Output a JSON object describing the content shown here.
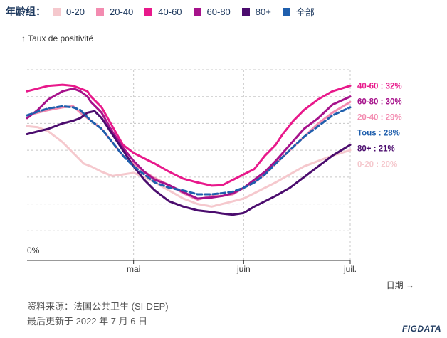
{
  "chart_data": {
    "type": "line",
    "legend_title": "年龄组：",
    "ylabel": "↑ Taux de positivité",
    "xlabel": "日期 →",
    "y_tick_label": "0%",
    "ylim": [
      0,
      35
    ],
    "x_ticks": [
      {
        "label": "mai",
        "day": 30
      },
      {
        "label": "juin",
        "day": 61
      },
      {
        "label": "juil.",
        "day": 91
      }
    ],
    "x_range": [
      0,
      91
    ],
    "series": [
      {
        "name": "0-20",
        "color": "#f5c8cd",
        "end_label": "0-20 : 20%",
        "dashed": false,
        "points": [
          [
            0,
            24.5
          ],
          [
            3,
            24.3
          ],
          [
            6,
            23.5
          ],
          [
            10,
            21.5
          ],
          [
            13,
            19.5
          ],
          [
            16,
            17.5
          ],
          [
            18,
            17
          ],
          [
            21,
            16
          ],
          [
            24,
            15.2
          ],
          [
            27,
            15.5
          ],
          [
            30,
            15.8
          ],
          [
            33,
            15
          ],
          [
            36,
            14
          ],
          [
            40,
            12.5
          ],
          [
            44,
            11
          ],
          [
            48,
            10
          ],
          [
            52,
            9.5
          ],
          [
            55,
            10
          ],
          [
            58,
            10.5
          ],
          [
            61,
            11
          ],
          [
            64,
            12
          ],
          [
            67,
            13
          ],
          [
            70,
            14
          ],
          [
            74,
            15.5
          ],
          [
            78,
            17
          ],
          [
            82,
            18
          ],
          [
            86,
            19
          ],
          [
            91,
            20
          ]
        ]
      },
      {
        "name": "20-40",
        "color": "#f38bb0",
        "end_label": "20-40 : 29%",
        "dashed": false,
        "points": [
          [
            0,
            26.5
          ],
          [
            3,
            27
          ],
          [
            6,
            27.5
          ],
          [
            10,
            28
          ],
          [
            13,
            28.2
          ],
          [
            15,
            27
          ],
          [
            18,
            25.5
          ],
          [
            21,
            24
          ],
          [
            24,
            21.5
          ],
          [
            27,
            19
          ],
          [
            30,
            17.5
          ],
          [
            33,
            16
          ],
          [
            36,
            14.8
          ],
          [
            40,
            13.5
          ],
          [
            44,
            12
          ],
          [
            48,
            10.8
          ],
          [
            52,
            11.5
          ],
          [
            55,
            11.5
          ],
          [
            58,
            11.8
          ],
          [
            61,
            13
          ],
          [
            64,
            14
          ],
          [
            67,
            15.5
          ],
          [
            70,
            17.5
          ],
          [
            74,
            20
          ],
          [
            78,
            22.5
          ],
          [
            82,
            25
          ],
          [
            86,
            27
          ],
          [
            91,
            29
          ]
        ]
      },
      {
        "name": "40-60",
        "color": "#e8198b",
        "end_label": "40-60 : 32%",
        "dashed": false,
        "points": [
          [
            0,
            31
          ],
          [
            3,
            31.5
          ],
          [
            6,
            32
          ],
          [
            10,
            32.2
          ],
          [
            13,
            32
          ],
          [
            15,
            31.5
          ],
          [
            17,
            31
          ],
          [
            18,
            30
          ],
          [
            21,
            28
          ],
          [
            24,
            24.5
          ],
          [
            27,
            21
          ],
          [
            30,
            19.5
          ],
          [
            33,
            18.5
          ],
          [
            36,
            17.5
          ],
          [
            40,
            16
          ],
          [
            44,
            14.7
          ],
          [
            48,
            14
          ],
          [
            52,
            13.4
          ],
          [
            55,
            13.5
          ],
          [
            58,
            14.5
          ],
          [
            61,
            15.5
          ],
          [
            64,
            16.5
          ],
          [
            67,
            19
          ],
          [
            70,
            21
          ],
          [
            72,
            23
          ],
          [
            75,
            25.5
          ],
          [
            78,
            27.5
          ],
          [
            82,
            29.5
          ],
          [
            86,
            31
          ],
          [
            91,
            32
          ]
        ]
      },
      {
        "name": "60-80",
        "color": "#a6128b",
        "end_label": "60-80 : 30%",
        "dashed": false,
        "points": [
          [
            0,
            26
          ],
          [
            3,
            27.5
          ],
          [
            6,
            29.5
          ],
          [
            10,
            31
          ],
          [
            13,
            31.5
          ],
          [
            15,
            31
          ],
          [
            17,
            30
          ],
          [
            18,
            29
          ],
          [
            21,
            27
          ],
          [
            24,
            23.5
          ],
          [
            27,
            20.5
          ],
          [
            30,
            18
          ],
          [
            33,
            16
          ],
          [
            36,
            14.5
          ],
          [
            40,
            13.5
          ],
          [
            44,
            12.2
          ],
          [
            48,
            11
          ],
          [
            52,
            11.2
          ],
          [
            55,
            11.5
          ],
          [
            58,
            12
          ],
          [
            61,
            13
          ],
          [
            64,
            14.5
          ],
          [
            67,
            16
          ],
          [
            70,
            18
          ],
          [
            74,
            21
          ],
          [
            78,
            24
          ],
          [
            82,
            26
          ],
          [
            86,
            28.5
          ],
          [
            91,
            30
          ]
        ]
      },
      {
        "name": "80+",
        "color": "#4b0c6e",
        "end_label": "80+ : 21%",
        "dashed": false,
        "points": [
          [
            0,
            23
          ],
          [
            3,
            23.5
          ],
          [
            6,
            24
          ],
          [
            10,
            25
          ],
          [
            13,
            25.5
          ],
          [
            15,
            26
          ],
          [
            17,
            27
          ],
          [
            19,
            27.3
          ],
          [
            21,
            26
          ],
          [
            24,
            23
          ],
          [
            27,
            20
          ],
          [
            30,
            17
          ],
          [
            33,
            14.5
          ],
          [
            36,
            12.5
          ],
          [
            40,
            10.5
          ],
          [
            44,
            9.5
          ],
          [
            48,
            8.8
          ],
          [
            52,
            8.5
          ],
          [
            55,
            8.2
          ],
          [
            58,
            8
          ],
          [
            61,
            8.3
          ],
          [
            64,
            9.5
          ],
          [
            67,
            10.5
          ],
          [
            70,
            11.5
          ],
          [
            74,
            13
          ],
          [
            78,
            15
          ],
          [
            82,
            17
          ],
          [
            86,
            19
          ],
          [
            91,
            21
          ]
        ]
      },
      {
        "name": "全部",
        "color": "#1f5fad",
        "end_label": "Tous : 28%",
        "dashed": true,
        "points": [
          [
            0,
            26.5
          ],
          [
            3,
            27.2
          ],
          [
            6,
            27.8
          ],
          [
            10,
            28.2
          ],
          [
            13,
            28
          ],
          [
            15,
            27.5
          ],
          [
            18,
            25.5
          ],
          [
            21,
            24
          ],
          [
            24,
            21.5
          ],
          [
            27,
            19
          ],
          [
            30,
            17
          ],
          [
            33,
            15.5
          ],
          [
            36,
            14
          ],
          [
            40,
            13
          ],
          [
            44,
            12.5
          ],
          [
            48,
            11.8
          ],
          [
            52,
            11.8
          ],
          [
            55,
            12
          ],
          [
            58,
            12.3
          ],
          [
            61,
            13
          ],
          [
            64,
            14
          ],
          [
            67,
            15.5
          ],
          [
            70,
            17.5
          ],
          [
            74,
            20
          ],
          [
            78,
            22.5
          ],
          [
            82,
            24.5
          ],
          [
            86,
            26.5
          ],
          [
            91,
            28
          ]
        ]
      }
    ]
  },
  "source": {
    "line1": "资料来源：法国公共卫生 (SI-DEP)",
    "line2": "最后更新于 2022 年 7 月 6 日"
  },
  "logo": "FIGDATA"
}
